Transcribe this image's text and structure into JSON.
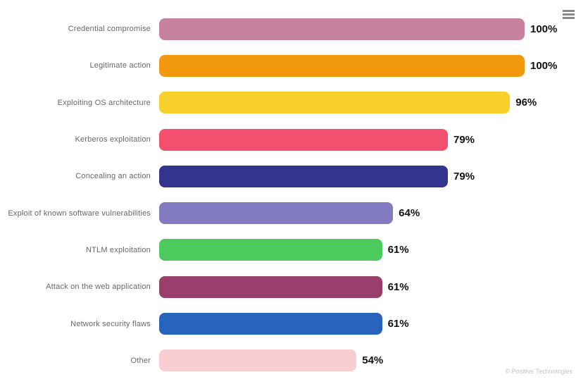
{
  "chart_data": {
    "type": "bar",
    "orientation": "horizontal",
    "title": "",
    "xlabel": "",
    "ylabel": "",
    "xlim": [
      0,
      100
    ],
    "unit": "%",
    "grid": false,
    "legend": "none",
    "categories": [
      "Credential compromise",
      "Legitimate action",
      "Exploiting OS architecture",
      "Kerberos exploitation",
      "Concealing an action",
      "Exploit of known software vulnerabilities",
      "NTLM exploitation",
      "Attack on the web application",
      "Network security flaws",
      "Other"
    ],
    "values": [
      100,
      100,
      96,
      79,
      79,
      64,
      61,
      61,
      61,
      54
    ],
    "data_labels": [
      "100%",
      "100%",
      "96%",
      "79%",
      "79%",
      "64%",
      "61%",
      "61%",
      "61%",
      "54%"
    ],
    "bar_colors": [
      "#c7829f",
      "#f1980c",
      "#f8d02c",
      "#f2506e",
      "#32348e",
      "#837bc1",
      "#4dca5d",
      "#9a3f6c",
      "#2964bc",
      "#f9cdd2"
    ]
  },
  "menu": {
    "icon": "hamburger-menu-icon"
  },
  "footer": {
    "credit": "© Positive Technologies"
  },
  "colors": {
    "background": "#ffffff",
    "category_label": "#666666",
    "value_label": "#111111",
    "menu_icon": "#888888",
    "credit": "#c4c4c4"
  }
}
